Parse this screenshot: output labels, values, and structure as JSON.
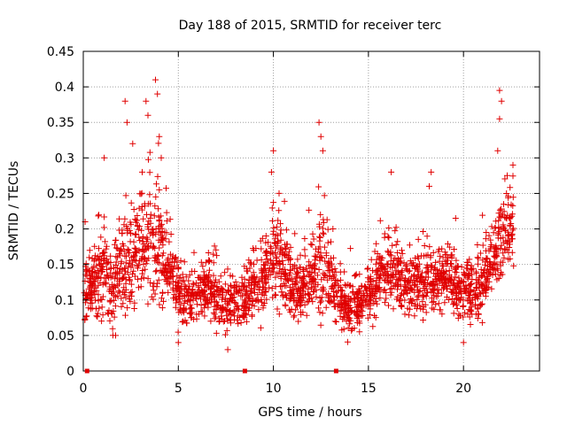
{
  "chart_data": {
    "type": "scatter",
    "title": "Day 188 of 2015, SRMTID for receiver terc",
    "xlabel": "GPS time / hours",
    "ylabel": "SRMTID / TECUs",
    "xlim": [
      0,
      24
    ],
    "ylim": [
      0,
      0.45
    ],
    "x_ticks": [
      0,
      5,
      10,
      15,
      20
    ],
    "x_tick_labels": [
      "0",
      "5",
      "10",
      "15",
      "20"
    ],
    "y_ticks": [
      0,
      0.05,
      0.1,
      0.15,
      0.2,
      0.25,
      0.3,
      0.35,
      0.4,
      0.45
    ],
    "y_tick_labels": [
      "0",
      "0.05",
      "0.1",
      "0.15",
      "0.2",
      "0.25",
      "0.3",
      "0.35",
      "0.4",
      "0.45"
    ],
    "grid": true,
    "marker": "+",
    "series_color": "#e00000",
    "markers_on_x_axis": [
      0.2,
      8.5,
      13.3
    ],
    "profile": {
      "description": "approximate centre and spread of the dense point cloud, in data units",
      "x": [
        0,
        0.5,
        1.0,
        1.5,
        2.0,
        2.5,
        3.0,
        3.5,
        4.0,
        4.5,
        5.0,
        5.5,
        6.0,
        6.5,
        7.0,
        7.5,
        8.0,
        8.5,
        9.0,
        9.5,
        10.0,
        10.5,
        11.0,
        11.5,
        12.0,
        12.5,
        13.0,
        13.5,
        14.0,
        14.5,
        15.0,
        15.5,
        16.0,
        16.5,
        17.0,
        17.5,
        18.0,
        18.5,
        19.0,
        19.5,
        20.0,
        20.5,
        21.0,
        21.5,
        22.0,
        22.5
      ],
      "center": [
        0.11,
        0.12,
        0.14,
        0.12,
        0.14,
        0.15,
        0.18,
        0.19,
        0.17,
        0.14,
        0.11,
        0.1,
        0.11,
        0.12,
        0.1,
        0.09,
        0.1,
        0.1,
        0.12,
        0.13,
        0.16,
        0.15,
        0.12,
        0.11,
        0.13,
        0.16,
        0.13,
        0.1,
        0.09,
        0.09,
        0.11,
        0.13,
        0.14,
        0.14,
        0.12,
        0.12,
        0.13,
        0.12,
        0.13,
        0.12,
        0.11,
        0.11,
        0.12,
        0.15,
        0.19,
        0.21
      ],
      "spread": [
        0.035,
        0.04,
        0.05,
        0.045,
        0.06,
        0.06,
        0.075,
        0.08,
        0.07,
        0.045,
        0.035,
        0.03,
        0.035,
        0.035,
        0.035,
        0.035,
        0.03,
        0.03,
        0.035,
        0.04,
        0.06,
        0.05,
        0.035,
        0.035,
        0.045,
        0.07,
        0.05,
        0.035,
        0.03,
        0.03,
        0.035,
        0.04,
        0.045,
        0.045,
        0.035,
        0.04,
        0.04,
        0.035,
        0.04,
        0.035,
        0.035,
        0.035,
        0.04,
        0.045,
        0.06,
        0.045
      ]
    },
    "peaks": [
      {
        "x": 0.1,
        "y": 0.21
      },
      {
        "x": 1.1,
        "y": 0.3
      },
      {
        "x": 2.2,
        "y": 0.38
      },
      {
        "x": 2.3,
        "y": 0.35
      },
      {
        "x": 2.6,
        "y": 0.32
      },
      {
        "x": 3.1,
        "y": 0.28
      },
      {
        "x": 3.3,
        "y": 0.38
      },
      {
        "x": 3.4,
        "y": 0.36
      },
      {
        "x": 3.8,
        "y": 0.41
      },
      {
        "x": 3.9,
        "y": 0.39
      },
      {
        "x": 4.0,
        "y": 0.33
      },
      {
        "x": 4.1,
        "y": 0.3
      },
      {
        "x": 9.9,
        "y": 0.28
      },
      {
        "x": 10.0,
        "y": 0.31
      },
      {
        "x": 10.3,
        "y": 0.25
      },
      {
        "x": 12.4,
        "y": 0.35
      },
      {
        "x": 12.5,
        "y": 0.33
      },
      {
        "x": 12.6,
        "y": 0.31
      },
      {
        "x": 16.2,
        "y": 0.28
      },
      {
        "x": 18.3,
        "y": 0.28
      },
      {
        "x": 18.2,
        "y": 0.26
      },
      {
        "x": 21.9,
        "y": 0.395
      },
      {
        "x": 22.0,
        "y": 0.38
      },
      {
        "x": 21.9,
        "y": 0.355
      },
      {
        "x": 21.8,
        "y": 0.31
      },
      {
        "x": 22.6,
        "y": 0.29
      },
      {
        "x": 7.6,
        "y": 0.03
      },
      {
        "x": 1.7,
        "y": 0.05
      },
      {
        "x": 20.0,
        "y": 0.04
      },
      {
        "x": 5.0,
        "y": 0.04
      }
    ]
  }
}
